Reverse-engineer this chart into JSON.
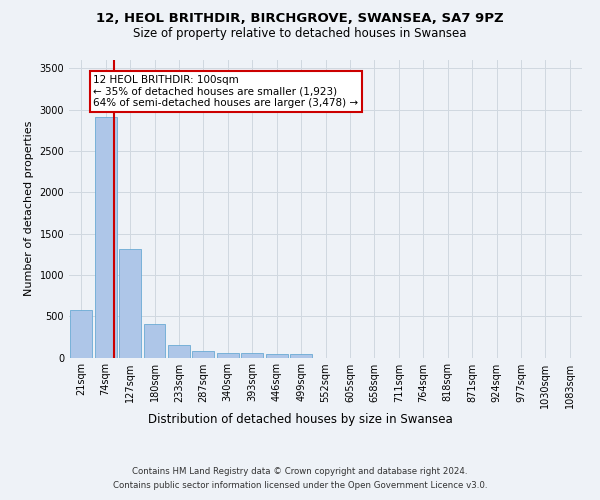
{
  "title_line1": "12, HEOL BRITHDIR, BIRCHGROVE, SWANSEA, SA7 9PZ",
  "title_line2": "Size of property relative to detached houses in Swansea",
  "xlabel": "Distribution of detached houses by size in Swansea",
  "ylabel": "Number of detached properties",
  "footnote1": "Contains HM Land Registry data © Crown copyright and database right 2024.",
  "footnote2": "Contains public sector information licensed under the Open Government Licence v3.0.",
  "bar_labels": [
    "21sqm",
    "74sqm",
    "127sqm",
    "180sqm",
    "233sqm",
    "287sqm",
    "340sqm",
    "393sqm",
    "446sqm",
    "499sqm",
    "552sqm",
    "605sqm",
    "658sqm",
    "711sqm",
    "764sqm",
    "818sqm",
    "871sqm",
    "924sqm",
    "977sqm",
    "1030sqm",
    "1083sqm"
  ],
  "bar_values": [
    570,
    2910,
    1310,
    410,
    155,
    75,
    60,
    55,
    45,
    40,
    0,
    0,
    0,
    0,
    0,
    0,
    0,
    0,
    0,
    0,
    0
  ],
  "bar_color": "#aec6e8",
  "bar_edge_color": "#6aaad4",
  "grid_color": "#d0d8e0",
  "vline_color": "#cc0000",
  "vline_x": 1.35,
  "annotation_box_text": "12 HEOL BRITHDIR: 100sqm\n← 35% of detached houses are smaller (1,923)\n64% of semi-detached houses are larger (3,478) →",
  "ylim": [
    0,
    3600
  ],
  "yticks": [
    0,
    500,
    1000,
    1500,
    2000,
    2500,
    3000,
    3500
  ],
  "background_color": "#eef2f7",
  "axes_background": "#eef2f7",
  "title1_fontsize": 9.5,
  "title2_fontsize": 8.5,
  "ylabel_fontsize": 8,
  "xlabel_fontsize": 8.5,
  "tick_fontsize": 7,
  "annot_fontsize": 7.5,
  "footnote_fontsize": 6.2
}
